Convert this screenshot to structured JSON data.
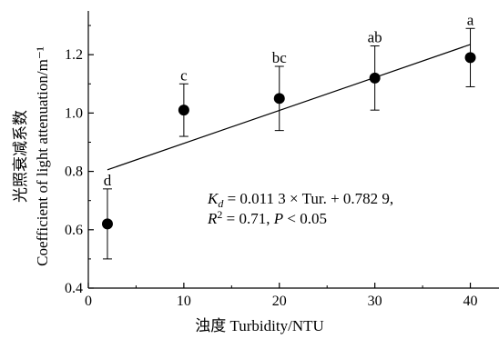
{
  "chart_data": {
    "type": "scatter",
    "title": "",
    "xlabel": "浊度 Turbidity/NTU",
    "ylabel_cn": "光照衰减系数",
    "ylabel_en": "Coefficient of light attenuation/m⁻¹",
    "xlim": [
      0,
      43
    ],
    "ylim": [
      0.4,
      1.35
    ],
    "xticks": [
      0,
      10,
      20,
      30,
      40
    ],
    "xtick_labels": [
      "0",
      "10",
      "20",
      "30",
      "40"
    ],
    "yticks": [
      0.4,
      0.6,
      0.8,
      1.0,
      1.2
    ],
    "ytick_labels": [
      "0.4",
      "0.6",
      "0.8",
      "1.0",
      "1.2"
    ],
    "points": [
      {
        "x": 2,
        "y": 0.62,
        "err": 0.12,
        "label": "d"
      },
      {
        "x": 10,
        "y": 1.01,
        "err": 0.09,
        "label": "c"
      },
      {
        "x": 20,
        "y": 1.05,
        "err": 0.11,
        "label": "bc"
      },
      {
        "x": 30,
        "y": 1.12,
        "err": 0.11,
        "label": "ab"
      },
      {
        "x": 40,
        "y": 1.19,
        "err": 0.1,
        "label": "a"
      }
    ],
    "fit": {
      "slope": 0.0113,
      "intercept": 0.7829,
      "x_range": [
        2,
        40
      ]
    },
    "annotation": {
      "kd_symbol": "K",
      "kd_sub": "d",
      "line1_rest": " = 0.011 3 × Tur. + 0.782 9,",
      "r_symbol": "R",
      "r_sup": "2",
      "line2_mid": " = 0.71, ",
      "p_symbol": "P",
      "line2_end": " < 0.05"
    },
    "grid": false,
    "legend": "none"
  }
}
